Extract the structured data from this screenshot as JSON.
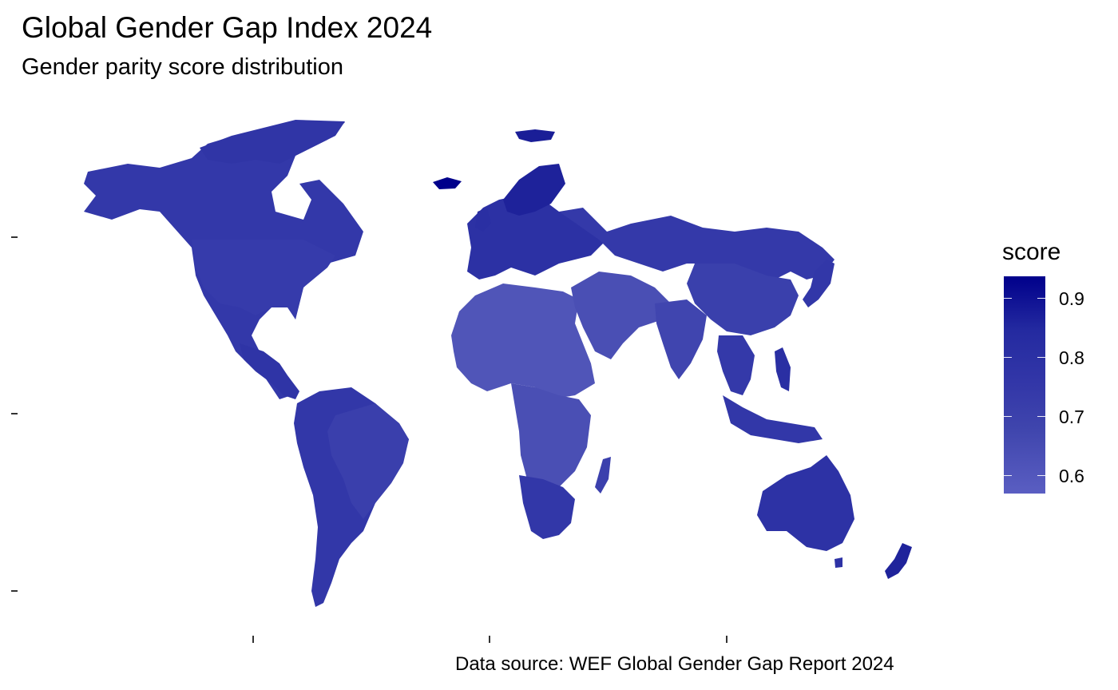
{
  "title": "Global Gender Gap Index 2024",
  "subtitle": "Gender parity score distribution",
  "caption": "Data source: WEF Global Gender Gap Report 2024",
  "legend": {
    "title": "score",
    "ticks": [
      "0.9",
      "0.8",
      "0.7",
      "0.6"
    ],
    "range": [
      0.57,
      0.935
    ],
    "low_color": "#5a5ec2",
    "high_color": "#00008b"
  },
  "axes": {
    "y_ticks": [
      "",
      "",
      ""
    ],
    "x_ticks": [
      "",
      "",
      ""
    ]
  },
  "colors": {
    "land_default": "#3237a8",
    "africa_sahel": "#5055b8",
    "middle_east": "#4a4fb4",
    "europe": "#2c31a4",
    "nordic": "#1e229a",
    "iceland": "#00008b",
    "oceania": "#2d32a5",
    "east_asia": "#3a40ac"
  }
}
